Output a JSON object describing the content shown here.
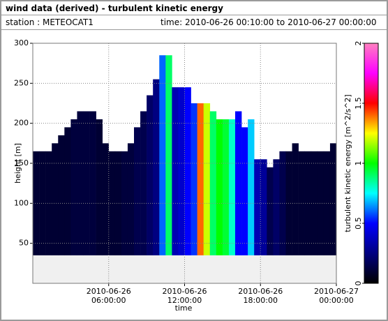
{
  "header": {
    "title": "wind data (derived) - turbulent kinetic energy",
    "station": "station : METEOCAT1",
    "time": "time: 2010-06-26 00:10:00 to 2010-06-27 00:00:00"
  },
  "chart_data": {
    "type": "heatmap",
    "xlabel": "time",
    "ylabel": "height [m]",
    "xlim": [
      0,
      24
    ],
    "ylim": [
      0,
      300
    ],
    "xticks": [
      {
        "value": 6,
        "label": "2010-06-26\n06:00:00"
      },
      {
        "value": 12,
        "label": "2010-06-26\n12:00:00"
      },
      {
        "value": 18,
        "label": "2010-06-26\n18:00:00"
      },
      {
        "value": 24,
        "label": "2010-06-27\n00:00:00"
      }
    ],
    "yticks": [
      50,
      100,
      150,
      200,
      250,
      300
    ],
    "grid": true,
    "bin_width": 0.5,
    "base": 35,
    "x": [
      0,
      0.5,
      1,
      1.5,
      2,
      2.5,
      3,
      3.5,
      4,
      4.5,
      5,
      5.5,
      6,
      6.5,
      7,
      7.5,
      8,
      8.5,
      9,
      9.5,
      10,
      10.5,
      11,
      11.5,
      12,
      12.5,
      13,
      13.5,
      14,
      14.5,
      15,
      15.5,
      16,
      16.5,
      17,
      17.5,
      18,
      18.5,
      19,
      19.5,
      20,
      20.5,
      21,
      21.5,
      22,
      22.5,
      23,
      23.5
    ],
    "tops": [
      165,
      165,
      165,
      175,
      185,
      195,
      205,
      215,
      215,
      215,
      205,
      175,
      165,
      165,
      165,
      175,
      195,
      215,
      235,
      255,
      285,
      285,
      245,
      245,
      245,
      225,
      225,
      225,
      215,
      205,
      205,
      205,
      215,
      195,
      205,
      155,
      155,
      145,
      155,
      165,
      165,
      175,
      165,
      165,
      165,
      165,
      165,
      175
    ],
    "values": [
      0.1,
      0.1,
      0.1,
      0.1,
      0.1,
      0.1,
      0.12,
      0.12,
      0.12,
      0.12,
      0.1,
      0.1,
      0.1,
      0.1,
      0.12,
      0.12,
      0.15,
      0.15,
      0.2,
      0.25,
      0.6,
      0.9,
      0.35,
      0.4,
      0.5,
      0.55,
      1.4,
      1.2,
      0.9,
      1.0,
      0.95,
      0.8,
      0.5,
      0.5,
      0.7,
      0.35,
      0.3,
      0.15,
      0.2,
      0.15,
      0.1,
      0.1,
      0.1,
      0.1,
      0.1,
      0.1,
      0.1,
      0.1
    ],
    "colorbar": {
      "label": "turbulent kinetic energy [m^2/s^2]",
      "lim": [
        0,
        2
      ],
      "ticks": [
        0,
        0.5,
        1,
        1.5,
        2
      ],
      "colormap": [
        "#000000",
        "#000080",
        "#0000ff",
        "#00ffff",
        "#00ff00",
        "#ffff00",
        "#ff0000",
        "#ff00ff",
        "#ff80c0"
      ]
    }
  }
}
